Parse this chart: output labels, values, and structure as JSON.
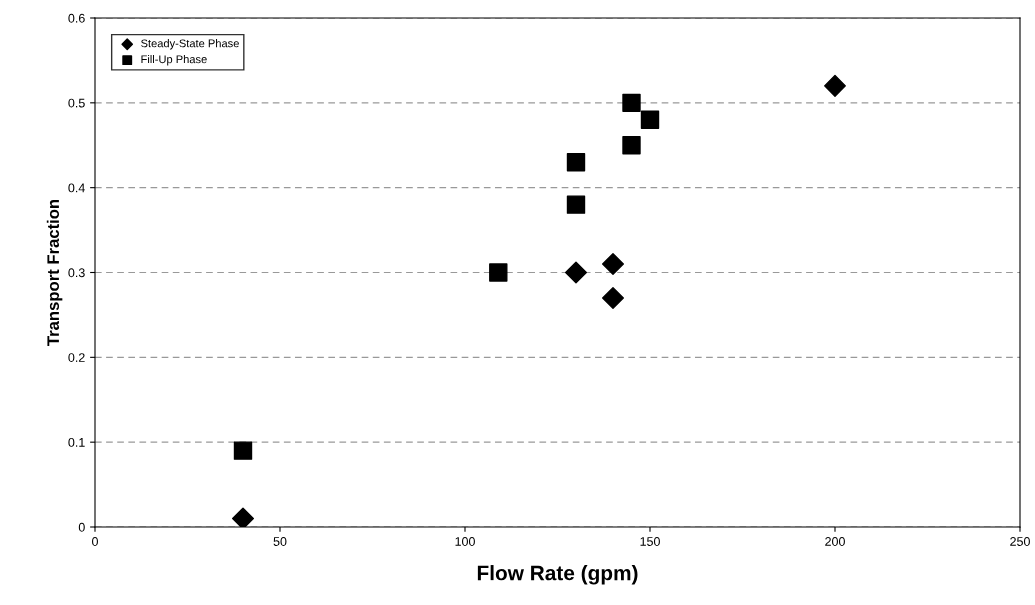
{
  "chart_data": {
    "type": "scatter",
    "xlabel": "Flow Rate (gpm)",
    "ylabel": "Transport Fraction",
    "series": [
      {
        "name": "Steady-State Phase",
        "color": "#000000",
        "marker": "diamond",
        "x": [
          40,
          130,
          140,
          140,
          200
        ],
        "values": [
          0.01,
          0.3,
          0.31,
          0.27,
          0.52
        ]
      },
      {
        "name": "Fill-Up Phase",
        "color": "#000000",
        "marker": "square",
        "x": [
          40,
          109,
          130,
          130,
          145,
          145,
          150
        ],
        "values": [
          0.09,
          0.3,
          0.43,
          0.38,
          0.45,
          0.5,
          0.48
        ]
      }
    ],
    "xlim": [
      0,
      250
    ],
    "xticks": [
      0,
      50,
      100,
      150,
      200,
      250
    ],
    "ylim": [
      0,
      0.6
    ],
    "yticks": [
      0,
      0.1,
      0.2,
      0.3,
      0.4,
      0.5,
      0.6
    ],
    "grid": "y",
    "legend": "top left"
  }
}
